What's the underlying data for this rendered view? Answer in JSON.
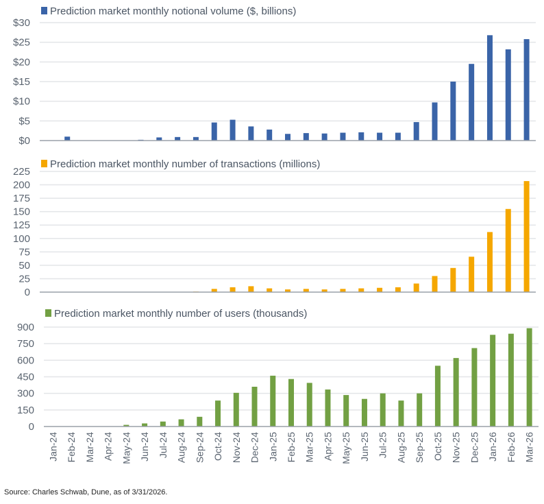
{
  "chart_data": [
    {
      "type": "bar",
      "legend": "Prediction market monthly notional volume ($, billions)",
      "color": "#3a64a8",
      "ylim": [
        0,
        30
      ],
      "yticks": [
        "$0",
        "$5",
        "$10",
        "$15",
        "$20",
        "$25",
        "$30"
      ],
      "ytick_values": [
        0,
        5,
        10,
        15,
        20,
        25,
        30
      ],
      "grid": true,
      "categories": [
        "Jan-24",
        "Feb-24",
        "Mar-24",
        "Apr-24",
        "May-24",
        "Jun-24",
        "Jul-24",
        "Aug-24",
        "Sep-24",
        "Oct-24",
        "Nov-24",
        "Dec-24",
        "Jan-25",
        "Feb-25",
        "Mar-25",
        "Apr-25",
        "May-25",
        "Jun-25",
        "Jul-25",
        "Aug-25",
        "Sep-25",
        "Oct-25",
        "Nov-25",
        "Dec-25",
        "Jan-26",
        "Feb-26",
        "Mar-26"
      ],
      "values": [
        0,
        1.0,
        0,
        0,
        0,
        0.2,
        0.8,
        0.9,
        0.9,
        4.6,
        5.3,
        3.6,
        2.8,
        1.7,
        1.9,
        1.8,
        2.0,
        2.1,
        2.0,
        2.0,
        4.7,
        9.7,
        15.0,
        19.5,
        26.8,
        23.2,
        25.8
      ]
    },
    {
      "type": "bar",
      "legend": "Prediction market monthly number of transactions (millions)",
      "color": "#f5a700",
      "ylim": [
        0,
        225
      ],
      "yticks": [
        "0",
        "25",
        "50",
        "75",
        "100",
        "125",
        "150",
        "175",
        "200",
        "225"
      ],
      "ytick_values": [
        0,
        25,
        50,
        75,
        100,
        125,
        150,
        175,
        200,
        225
      ],
      "grid": true,
      "categories": [
        "Jan-24",
        "Feb-24",
        "Mar-24",
        "Apr-24",
        "May-24",
        "Jun-24",
        "Jul-24",
        "Aug-24",
        "Sep-24",
        "Oct-24",
        "Nov-24",
        "Dec-24",
        "Jan-25",
        "Feb-25",
        "Mar-25",
        "Apr-25",
        "May-25",
        "Jun-25",
        "Jul-25",
        "Aug-25",
        "Sep-25",
        "Oct-25",
        "Nov-25",
        "Dec-25",
        "Jan-26",
        "Feb-26",
        "Mar-26"
      ],
      "values": [
        0,
        0,
        0,
        0,
        0,
        0,
        0,
        0,
        1,
        6,
        9,
        11,
        7,
        5,
        6,
        5,
        6,
        7,
        8,
        9,
        16,
        30,
        45,
        66,
        112,
        155,
        207
      ]
    },
    {
      "type": "bar",
      "legend": "Prediction market monthly number of users (thousands)",
      "color": "#72a043",
      "ylim": [
        0,
        900
      ],
      "yticks": [
        "0",
        "150",
        "300",
        "450",
        "600",
        "750",
        "900"
      ],
      "ytick_values": [
        0,
        150,
        300,
        450,
        600,
        750,
        900
      ],
      "grid": true,
      "categories": [
        "Jan-24",
        "Feb-24",
        "Mar-24",
        "Apr-24",
        "May-24",
        "Jun-24",
        "Jul-24",
        "Aug-24",
        "Sep-24",
        "Oct-24",
        "Nov-24",
        "Dec-24",
        "Jan-25",
        "Feb-25",
        "Mar-25",
        "Apr-25",
        "May-25",
        "Jun-25",
        "Jul-25",
        "Aug-25",
        "Sep-25",
        "Oct-25",
        "Nov-25",
        "Dec-25",
        "Jan-26",
        "Feb-26",
        "Mar-26"
      ],
      "values": [
        0,
        0,
        0,
        0,
        15,
        28,
        45,
        65,
        88,
        235,
        305,
        360,
        460,
        430,
        395,
        335,
        285,
        250,
        300,
        235,
        300,
        550,
        620,
        710,
        830,
        840,
        890
      ]
    }
  ],
  "source": "Source: Charles Schwab, Dune, as of 3/31/2026."
}
